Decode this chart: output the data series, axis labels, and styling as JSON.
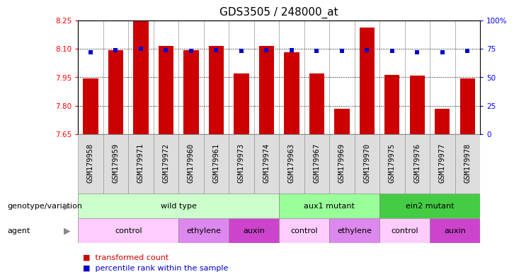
{
  "title": "GDS3505 / 248000_at",
  "samples": [
    "GSM179958",
    "GSM179959",
    "GSM179971",
    "GSM179972",
    "GSM179960",
    "GSM179961",
    "GSM179973",
    "GSM179974",
    "GSM179963",
    "GSM179967",
    "GSM179969",
    "GSM179970",
    "GSM179975",
    "GSM179976",
    "GSM179977",
    "GSM179978"
  ],
  "bar_values": [
    7.944,
    8.093,
    8.248,
    8.115,
    8.093,
    8.115,
    7.97,
    8.115,
    8.083,
    7.968,
    7.783,
    8.213,
    7.963,
    7.96,
    7.783,
    7.944
  ],
  "percentile_values": [
    72,
    74,
    75,
    74,
    73,
    74,
    73,
    74,
    74,
    73,
    73,
    74,
    73,
    72,
    72,
    73
  ],
  "ylim_left": [
    7.65,
    8.25
  ],
  "ylim_right": [
    0,
    100
  ],
  "yticks_left": [
    7.65,
    7.8,
    7.95,
    8.1,
    8.25
  ],
  "yticks_right": [
    0,
    25,
    50,
    75,
    100
  ],
  "ytick_labels_right": [
    "0",
    "25",
    "50",
    "75",
    "100%"
  ],
  "grid_values": [
    7.8,
    7.95,
    8.1
  ],
  "bar_color": "#cc0000",
  "percentile_color": "#0000cc",
  "genotype_groups": [
    {
      "label": "wild type",
      "start": 0,
      "end": 8,
      "color": "#ccffcc"
    },
    {
      "label": "aux1 mutant",
      "start": 8,
      "end": 12,
      "color": "#99ff99"
    },
    {
      "label": "ein2 mutant",
      "start": 12,
      "end": 16,
      "color": "#44cc44"
    }
  ],
  "agent_groups": [
    {
      "label": "control",
      "start": 0,
      "end": 4,
      "color": "#ffccff"
    },
    {
      "label": "ethylene",
      "start": 4,
      "end": 6,
      "color": "#dd88ee"
    },
    {
      "label": "auxin",
      "start": 6,
      "end": 8,
      "color": "#cc44cc"
    },
    {
      "label": "control",
      "start": 8,
      "end": 10,
      "color": "#ffccff"
    },
    {
      "label": "ethylene",
      "start": 10,
      "end": 12,
      "color": "#dd88ee"
    },
    {
      "label": "control",
      "start": 12,
      "end": 14,
      "color": "#ffccff"
    },
    {
      "label": "auxin",
      "start": 14,
      "end": 16,
      "color": "#cc44cc"
    }
  ],
  "legend_items": [
    {
      "label": "transformed count",
      "color": "#cc0000"
    },
    {
      "label": "percentile rank within the sample",
      "color": "#0000cc"
    }
  ],
  "genotype_label": "genotype/variation",
  "agent_label": "agent",
  "title_fontsize": 11,
  "tick_fontsize": 7.5
}
